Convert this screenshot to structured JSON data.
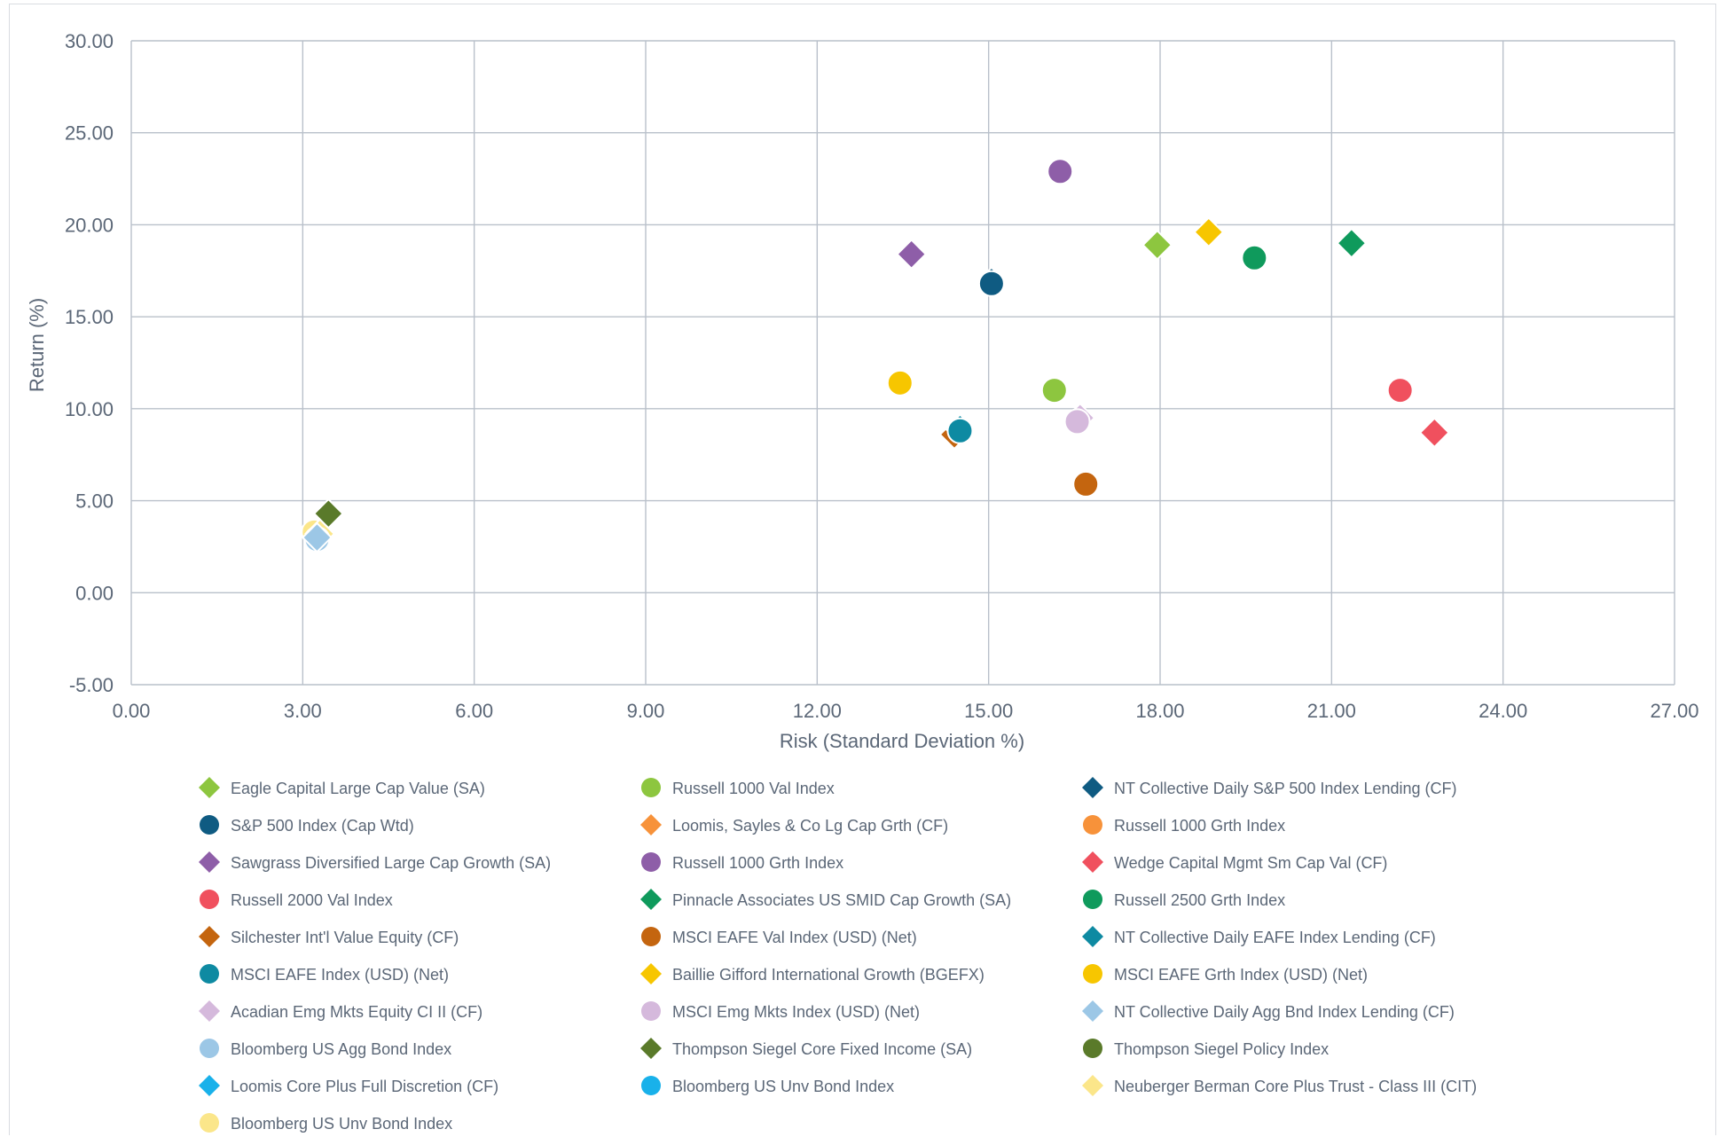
{
  "chart_data": {
    "type": "scatter",
    "xlabel": "Risk (Standard Deviation %)",
    "ylabel": "Return (%)",
    "xlim": [
      0,
      27
    ],
    "ylim": [
      -5,
      30
    ],
    "x_ticks": [
      "0.00",
      "3.00",
      "6.00",
      "9.00",
      "12.00",
      "15.00",
      "18.00",
      "21.00",
      "24.00",
      "27.00"
    ],
    "y_ticks": [
      "-5.00",
      "0.00",
      "5.00",
      "10.00",
      "15.00",
      "20.00",
      "25.00",
      "30.00"
    ],
    "grid": true,
    "legend_position": "bottom",
    "series": [
      {
        "name": "Eagle Capital Large Cap Value (SA)",
        "marker": "diamond",
        "color": "#8dc63f",
        "x": 17.95,
        "y": 18.9
      },
      {
        "name": "Russell 1000 Val Index",
        "marker": "circle",
        "color": "#8dc63f",
        "x": 16.15,
        "y": 11.0
      },
      {
        "name": "NT Collective Daily S&P 500 Index Lending (CF)",
        "marker": "diamond",
        "color": "#0f5b82",
        "x": 15.05,
        "y": 16.9
      },
      {
        "name": "S&P 500 Index (Cap Wtd)",
        "marker": "circle",
        "color": "#0f5b82",
        "x": 15.05,
        "y": 16.8
      },
      {
        "name": "Loomis, Sayles & Co Lg Cap Grth (CF)",
        "marker": "diamond",
        "color": "#f7923a",
        "x": 16.25,
        "y": 22.9
      },
      {
        "name": "Russell 1000 Grth Index",
        "marker": "circle",
        "color": "#f7923a",
        "x": 16.25,
        "y": 22.9
      },
      {
        "name": "Sawgrass Diversified Large Cap Growth (SA)",
        "marker": "diamond",
        "color": "#8e5ea8",
        "x": 13.65,
        "y": 18.4
      },
      {
        "name": "Russell 1000 Grth Index",
        "marker": "circle",
        "color": "#8e5ea8",
        "x": 16.25,
        "y": 22.9
      },
      {
        "name": "Wedge Capital Mgmt Sm Cap Val (CF)",
        "marker": "diamond",
        "color": "#f0505e",
        "x": 22.8,
        "y": 8.7
      },
      {
        "name": "Russell 2000 Val Index",
        "marker": "circle",
        "color": "#f0505e",
        "x": 22.2,
        "y": 11.0
      },
      {
        "name": "Pinnacle Associates US SMID Cap Growth (SA)",
        "marker": "diamond",
        "color": "#0f9a5c",
        "x": 21.35,
        "y": 19.0
      },
      {
        "name": "Russell 2500 Grth Index",
        "marker": "circle",
        "color": "#0f9a5c",
        "x": 19.65,
        "y": 18.2
      },
      {
        "name": "Silchester Int'l Value Equity (CF)",
        "marker": "diamond",
        "color": "#c4650f",
        "x": 14.4,
        "y": 8.6
      },
      {
        "name": "MSCI EAFE Val Index (USD) (Net)",
        "marker": "circle",
        "color": "#c4650f",
        "x": 16.7,
        "y": 5.9
      },
      {
        "name": "NT Collective Daily EAFE Index Lending (CF)",
        "marker": "diamond",
        "color": "#0e8aa2",
        "x": 14.5,
        "y": 8.9
      },
      {
        "name": "MSCI EAFE Index (USD) (Net)",
        "marker": "circle",
        "color": "#0e8aa2",
        "x": 14.5,
        "y": 8.8
      },
      {
        "name": "Baillie Gifford International Growth (BGEFX)",
        "marker": "diamond",
        "color": "#f7c600",
        "x": 18.85,
        "y": 19.6
      },
      {
        "name": "MSCI EAFE Grth Index (USD) (Net)",
        "marker": "circle",
        "color": "#f7c600",
        "x": 13.45,
        "y": 11.4
      },
      {
        "name": "Acadian Emg Mkts Equity CI II (CF)",
        "marker": "diamond",
        "color": "#d5b9dc",
        "x": 16.6,
        "y": 9.5
      },
      {
        "name": "MSCI Emg Mkts Index (USD) (Net)",
        "marker": "circle",
        "color": "#d5b9dc",
        "x": 16.55,
        "y": 9.3
      },
      {
        "name": "NT Collective Daily Agg Bnd Index Lending (CF)",
        "marker": "diamond",
        "color": "#9cc7e6",
        "x": 3.25,
        "y": 3.0
      },
      {
        "name": "Bloomberg US Agg Bond Index",
        "marker": "circle",
        "color": "#9cc7e6",
        "x": 3.25,
        "y": 2.9
      },
      {
        "name": "Thompson Siegel Core Fixed Income (SA)",
        "marker": "diamond",
        "color": "#5a7a2a",
        "x": 3.45,
        "y": 4.3
      },
      {
        "name": "Thompson Siegel Policy Index",
        "marker": "circle",
        "color": "#5a7a2a",
        "x": 3.25,
        "y": 2.9
      },
      {
        "name": "Loomis Core Plus Full Discretion (CF)",
        "marker": "diamond",
        "color": "#19b1ea",
        "x": 3.3,
        "y": 3.2
      },
      {
        "name": "Bloomberg US Unv Bond Index",
        "marker": "circle",
        "color": "#19b1ea",
        "x": 3.2,
        "y": 3.3
      },
      {
        "name": "Neuberger Berman Core Plus Trust - Class III (CIT)",
        "marker": "diamond",
        "color": "#fbe68a",
        "x": 3.3,
        "y": 3.2
      },
      {
        "name": "Bloomberg US Unv Bond Index",
        "marker": "circle",
        "color": "#fbe68a",
        "x": 3.2,
        "y": 3.3
      }
    ],
    "draw_order": [
      "Thompson Siegel Policy Index",
      "Bloomberg US Unv Bond Index",
      "Loomis Core Plus Full Discretion (CF)",
      "Neuberger Berman Core Plus Trust - Class III (CIT)",
      "Bloomberg US Agg Bond Index",
      "NT Collective Daily Agg Bnd Index Lending (CF)",
      "Thompson Siegel Core Fixed Income (SA)"
    ]
  },
  "colors": {
    "grid": "#b9c0ca",
    "axis_text": "#5b6777",
    "background": "#ffffff",
    "frame": "#d9dce1"
  }
}
